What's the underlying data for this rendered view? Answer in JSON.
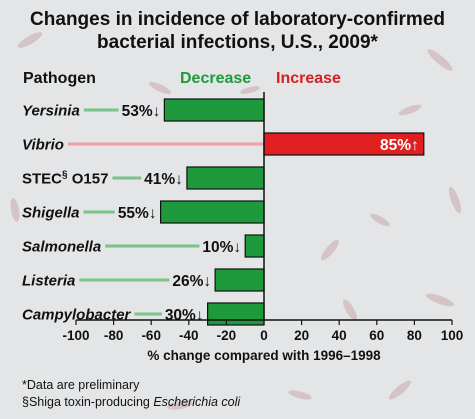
{
  "title_line1": "Changes in incidence of laboratory-confirmed",
  "title_line2": "bacterial infections, U.S., 2009*",
  "header_pathogen": "Pathogen",
  "header_decrease": "Decrease",
  "header_increase": "Increase",
  "footnote1": "*Data are preliminary",
  "footnote2_prefix": "§Shiga toxin-producing ",
  "footnote2_italic": "Escherichia coli",
  "colors": {
    "decrease": "#1e9a3c",
    "increase": "#e02020",
    "decrease_text": "#1e9a3c",
    "increase_text": "#d42020"
  },
  "chart_data": {
    "type": "bar",
    "orientation": "horizontal",
    "categories": [
      {
        "name": "Yersinia",
        "italic": true,
        "sup": "",
        "suffix": ""
      },
      {
        "name": "Vibrio",
        "italic": true,
        "sup": "",
        "suffix": ""
      },
      {
        "name": "STEC",
        "italic": false,
        "sup": "§",
        "suffix": " O157"
      },
      {
        "name": "Shigella",
        "italic": true,
        "sup": "",
        "suffix": ""
      },
      {
        "name": "Salmonella",
        "italic": true,
        "sup": "",
        "suffix": ""
      },
      {
        "name": "Listeria",
        "italic": true,
        "sup": "",
        "suffix": ""
      },
      {
        "name": "Campylobacter",
        "italic": true,
        "sup": "",
        "suffix": ""
      }
    ],
    "values": [
      -53,
      85,
      -41,
      -55,
      -10,
      -26,
      -30
    ],
    "value_labels": [
      "53%↓",
      "85%↑",
      "41%↓",
      "55%↓",
      "10%↓",
      "26%↓",
      "30%↓"
    ],
    "xlabel": "% change compared with 1996–1998",
    "xlim": [
      -100,
      100
    ],
    "xticks": [
      -100,
      -80,
      -60,
      -40,
      -20,
      0,
      20,
      40,
      60,
      80,
      100
    ]
  }
}
